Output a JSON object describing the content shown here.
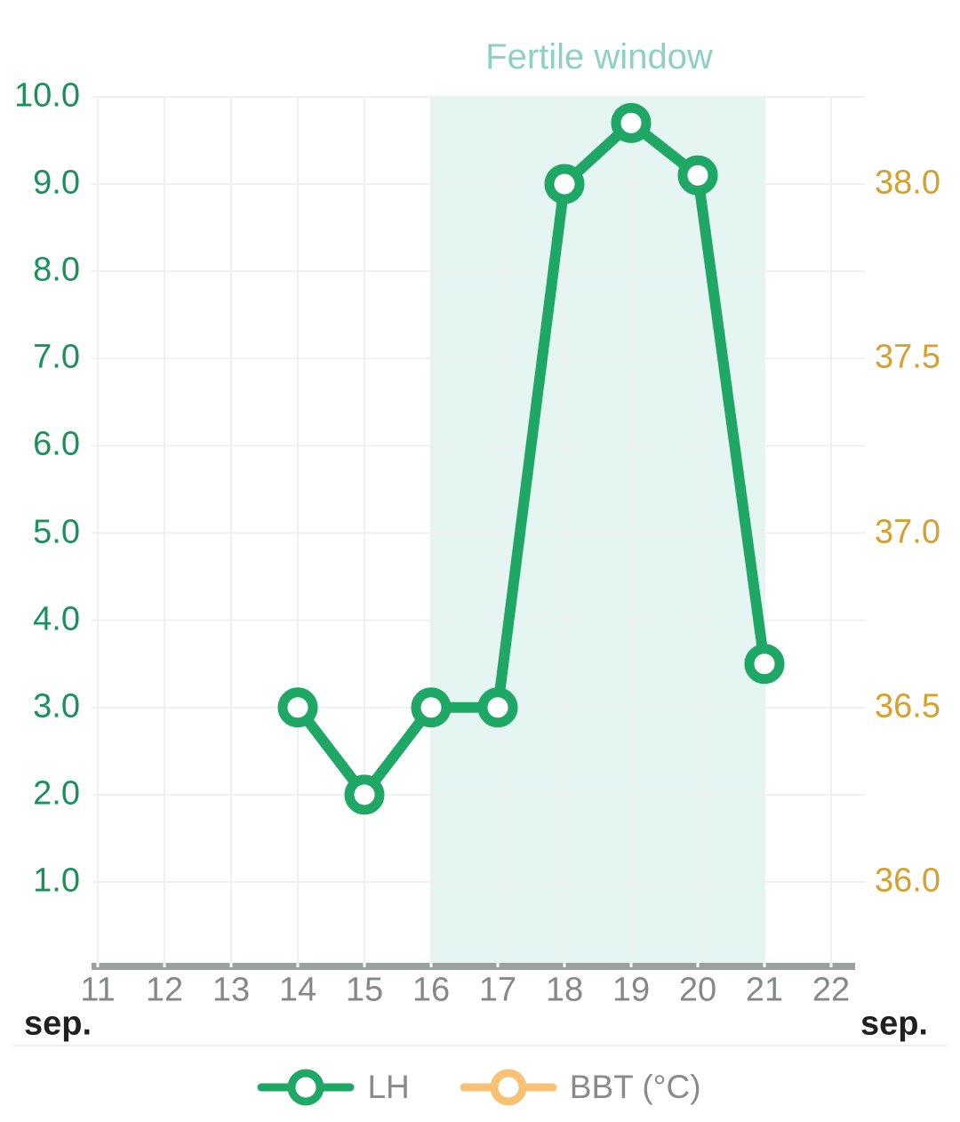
{
  "chart_data": {
    "type": "line",
    "title": "Fertile window",
    "title_color": "#8fd0c5",
    "x_axis": {
      "days": [
        11,
        12,
        13,
        14,
        15,
        16,
        17,
        18,
        19,
        20,
        21,
        22
      ],
      "unit_label": "sep.",
      "tick_color": "#85888a"
    },
    "left_axis": {
      "tick_values": [
        1,
        2,
        3,
        4,
        5,
        6,
        7,
        8,
        9,
        10
      ],
      "tick_labels": [
        "1.0",
        "2.0",
        "3.0",
        "4.0",
        "5.0",
        "6.0",
        "7.0",
        "8.0",
        "9.0",
        "10.0"
      ],
      "color": "#1b915a",
      "range": [
        0,
        10
      ]
    },
    "right_axis": {
      "tick_values": [
        36.0,
        36.5,
        37.0,
        37.5,
        38.0
      ],
      "tick_labels": [
        "36.0",
        "36.5",
        "37.0",
        "37.5",
        "38.0"
      ],
      "color": "#d5a02e",
      "range": [
        35.75,
        38.25
      ]
    },
    "series": [
      {
        "name": "LH",
        "color": "#1ea765",
        "axis": "left",
        "x": [
          14,
          15,
          16,
          17,
          18,
          19,
          20,
          21
        ],
        "values": [
          3.0,
          2.0,
          3.0,
          3.0,
          9.0,
          9.7,
          9.1,
          3.5
        ]
      },
      {
        "name": "BBT (°C)",
        "color": "#f8c173",
        "axis": "right",
        "x": [],
        "values": []
      }
    ],
    "fertile_window": {
      "start_day": 16,
      "end_day": 21,
      "fill": "#e5f5f1"
    },
    "legend": [
      {
        "label": "LH",
        "color": "#1ea765"
      },
      {
        "label": "BBT (°C)",
        "color": "#f8c173"
      }
    ],
    "grid": true,
    "legend_position": "bottom"
  }
}
